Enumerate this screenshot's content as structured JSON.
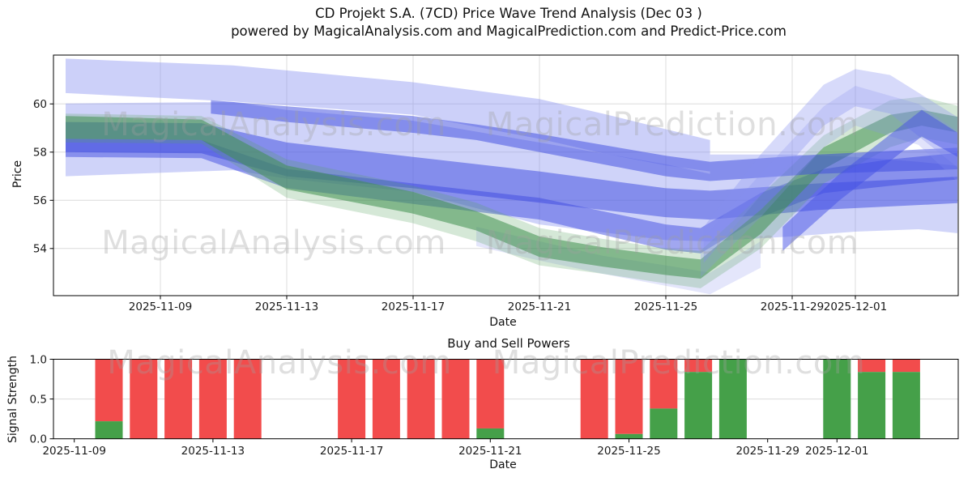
{
  "title": {
    "line1": "CD Projekt S.A. (7CD) Price Wave Trend Analysis (Dec 03 )",
    "line2": "powered by MagicalAnalysis.com and MagicalPrediction.com and Predict-Price.com"
  },
  "watermarks": {
    "left": "MagicalAnalysis.com",
    "right": "MagicalPrediction.com"
  },
  "colors": {
    "grid": "#dcdcdc",
    "spine": "#000000",
    "tick_text": "#1a1a1a",
    "buy_green": "#45a049",
    "sell_red": "#f24c4c",
    "royal_blue": "#3a47e0",
    "light_blue": "#8690f0",
    "band_green": "#3f8f4f"
  },
  "chart_data": [
    {
      "type": "area",
      "name": "price-wave-trend",
      "ylabel": "Price",
      "xlabel": "Date",
      "ylim": [
        52.1,
        61.95
      ],
      "grid": true,
      "yticks": [
        {
          "label": "60",
          "value": 60
        },
        {
          "label": "58",
          "value": 58
        },
        {
          "label": "56",
          "value": 56
        },
        {
          "label": "54",
          "value": 54
        }
      ],
      "xticks": [
        {
          "label": "2025-11-09",
          "day": 3
        },
        {
          "label": "2025-11-13",
          "day": 7
        },
        {
          "label": "2025-11-17",
          "day": 11
        },
        {
          "label": "2025-11-21",
          "day": 15
        },
        {
          "label": "2025-11-25",
          "day": 19
        },
        {
          "label": "2025-11-29",
          "day": 23
        },
        {
          "label": "2025-12-01",
          "day": 25
        }
      ],
      "day_zero_date": "2025-11-06",
      "bands": [
        {
          "name": "top-big-light",
          "color": "#8690f0",
          "opacity": 0.42,
          "points": [
            [
              0,
              60.45,
              61.88
            ],
            [
              5.3,
              60.1,
              61.6
            ],
            [
              11,
              59.55,
              60.9
            ],
            [
              15,
              58.55,
              60.2
            ],
            [
              17,
              57.95,
              59.6
            ],
            [
              19,
              57.45,
              58.95
            ],
            [
              20.4,
              57.2,
              58.5
            ]
          ]
        },
        {
          "name": "upper-second-light",
          "color": "#8690f0",
          "opacity": 0.4,
          "points": [
            [
              0,
              57.0,
              60.02
            ],
            [
              5.3,
              57.25,
              60.08
            ],
            [
              7,
              56.9,
              59.75
            ],
            [
              11,
              56.35,
              59.3
            ],
            [
              15,
              55.0,
              58.4
            ],
            [
              19,
              54.35,
              57.5
            ],
            [
              20.4,
              54.3,
              57.1
            ]
          ]
        },
        {
          "name": "mid-light-right",
          "color": "#8690f0",
          "opacity": 0.38,
          "points": [
            [
              20.4,
              54.3,
              57.9
            ],
            [
              23,
              54.5,
              57.9
            ],
            [
              25,
              54.7,
              57.8
            ],
            [
              27,
              54.8,
              57.6
            ],
            [
              28.5,
              54.6,
              57.4
            ]
          ]
        },
        {
          "name": "blue-tail",
          "color": "#6b77ea",
          "opacity": 0.18,
          "points": [
            [
              13,
              54.1,
              54.9
            ],
            [
              15,
              53.5,
              54.3
            ],
            [
              17,
              52.95,
              53.7
            ],
            [
              19,
              52.45,
              53.3
            ],
            [
              20.4,
              52.1,
              53.0
            ],
            [
              22,
              53.2,
              54.3
            ]
          ]
        },
        {
          "name": "royal-upper",
          "color": "#3a47e0",
          "opacity": 0.5,
          "points": [
            [
              0,
              58.0,
              59.25
            ],
            [
              4.3,
              57.95,
              59.2
            ],
            [
              7,
              57.0,
              58.4
            ],
            [
              11,
              56.5,
              57.8
            ],
            [
              15,
              55.9,
              57.2
            ],
            [
              19,
              55.3,
              56.5
            ],
            [
              20.4,
              55.2,
              56.4
            ],
            [
              23.8,
              55.6,
              56.7
            ],
            [
              28.5,
              55.9,
              57.0
            ]
          ]
        },
        {
          "name": "royal-lower",
          "color": "#3a47e0",
          "opacity": 0.48,
          "points": [
            [
              0,
              57.8,
              58.55
            ],
            [
              4.3,
              57.75,
              58.5
            ],
            [
              7,
              56.5,
              57.3
            ],
            [
              11,
              55.85,
              56.7
            ],
            [
              15,
              55.2,
              56.1
            ],
            [
              19,
              53.95,
              55.0
            ],
            [
              20.1,
              53.8,
              54.85
            ],
            [
              22,
              55.3,
              56.3
            ],
            [
              24,
              56.3,
              57.3
            ],
            [
              26.1,
              56.6,
              57.7
            ],
            [
              28.5,
              56.9,
              58.0
            ]
          ]
        },
        {
          "name": "green-halo",
          "color": "#58a55e",
          "opacity": 0.25,
          "points": [
            [
              0,
              58.4,
              59.6
            ],
            [
              4.3,
              58.35,
              59.5
            ],
            [
              7,
              56.1,
              57.7
            ],
            [
              11,
              55.05,
              56.6
            ],
            [
              13,
              54.3,
              55.9
            ],
            [
              15,
              53.3,
              54.85
            ],
            [
              17,
              52.95,
              54.4
            ],
            [
              19,
              52.55,
              54.0
            ],
            [
              20.1,
              52.35,
              53.9
            ],
            [
              22,
              54.0,
              56.2
            ],
            [
              24,
              56.7,
              58.7
            ],
            [
              26.1,
              58.2,
              60.15
            ],
            [
              27.1,
              58.6,
              60.3
            ],
            [
              28.3,
              58.3,
              59.9
            ]
          ]
        },
        {
          "name": "green-main",
          "color": "#3f8f4f",
          "opacity": 0.55,
          "points": [
            [
              0,
              58.55,
              59.5
            ],
            [
              4.3,
              58.5,
              59.35
            ],
            [
              7,
              56.45,
              57.45
            ],
            [
              11,
              55.45,
              56.35
            ],
            [
              13,
              54.75,
              55.55
            ],
            [
              15,
              53.65,
              54.5
            ],
            [
              17,
              53.25,
              54.05
            ],
            [
              19,
              52.9,
              53.7
            ],
            [
              20.1,
              52.75,
              53.55
            ],
            [
              22,
              54.6,
              55.6
            ],
            [
              24,
              57.3,
              58.2
            ],
            [
              26.1,
              58.8,
              59.55
            ],
            [
              27.1,
              59.1,
              59.75
            ],
            [
              28.3,
              58.8,
              59.45
            ]
          ]
        },
        {
          "name": "royal-top-stripe",
          "color": "#3a47e0",
          "opacity": 0.5,
          "points": [
            [
              4.6,
              59.6,
              60.15
            ],
            [
              7,
              59.25,
              59.9
            ],
            [
              11,
              58.8,
              59.5
            ],
            [
              13,
              58.5,
              59.15
            ],
            [
              15,
              58.0,
              58.75
            ],
            [
              17,
              57.5,
              58.3
            ],
            [
              19,
              57.0,
              57.85
            ],
            [
              20.4,
              56.8,
              57.6
            ],
            [
              23.8,
              57.1,
              57.9
            ],
            [
              28.5,
              57.3,
              58.2
            ]
          ]
        },
        {
          "name": "fan-light-outer",
          "color": "#8690f0",
          "opacity": 0.25,
          "points": [
            [
              20.1,
              52.8,
              54.3
            ],
            [
              22,
              55.3,
              57.1
            ],
            [
              24,
              58.2,
              59.9
            ],
            [
              25,
              59.1,
              60.75
            ],
            [
              27,
              58.3,
              60.0
            ],
            [
              28.3,
              56.7,
              58.8
            ]
          ]
        },
        {
          "name": "fan-light-inner",
          "color": "#8690f0",
          "opacity": 0.33,
          "points": [
            [
              20.2,
              53.4,
              54.9
            ],
            [
              22,
              56.2,
              57.9
            ],
            [
              24,
              59.1,
              60.8
            ],
            [
              25,
              59.9,
              61.45
            ],
            [
              26.1,
              59.6,
              61.2
            ],
            [
              28.3,
              57.3,
              59.4
            ]
          ]
        },
        {
          "name": "royal-steep-riser",
          "color": "#4350e6",
          "opacity": 0.5,
          "points": [
            [
              22.7,
              53.9,
              54.9
            ],
            [
              24.5,
              56.0,
              57.1
            ],
            [
              27.1,
              58.65,
              59.75
            ],
            [
              28.3,
              57.75,
              58.75
            ]
          ]
        }
      ]
    },
    {
      "type": "bar",
      "name": "buy-sell-powers",
      "title": "Buy and Sell Powers",
      "ylabel": "Signal Strength",
      "xlabel": "Date",
      "ylim": [
        0,
        1
      ],
      "grid": true,
      "yticks": [
        {
          "label": "1.0",
          "value": 1.0
        },
        {
          "label": "0.5",
          "value": 0.5
        },
        {
          "label": "0.0",
          "value": 0.0
        }
      ],
      "xticks": [
        {
          "label": "2025-11-09",
          "day": 3
        },
        {
          "label": "2025-11-13",
          "day": 7
        },
        {
          "label": "2025-11-17",
          "day": 11
        },
        {
          "label": "2025-11-21",
          "day": 15
        },
        {
          "label": "2025-11-25",
          "day": 19
        },
        {
          "label": "2025-11-29",
          "day": 23
        },
        {
          "label": "2025-12-01",
          "day": 25
        }
      ],
      "day_zero_date": "2025-11-06",
      "series": [
        {
          "name": "buy",
          "color": "#45a049"
        },
        {
          "name": "sell",
          "color": "#f24c4c"
        }
      ],
      "bars": [
        {
          "date": "2025-11-10",
          "buy": 0.22,
          "sell": 0.78
        },
        {
          "date": "2025-11-11",
          "buy": 0.0,
          "sell": 1.0
        },
        {
          "date": "2025-11-12",
          "buy": 0.0,
          "sell": 1.0
        },
        {
          "date": "2025-11-13",
          "buy": 0.0,
          "sell": 1.0
        },
        {
          "date": "2025-11-14",
          "buy": 0.0,
          "sell": 1.0
        },
        {
          "date": "2025-11-17",
          "buy": 0.0,
          "sell": 1.0
        },
        {
          "date": "2025-11-18",
          "buy": 0.0,
          "sell": 1.0
        },
        {
          "date": "2025-11-19",
          "buy": 0.0,
          "sell": 1.0
        },
        {
          "date": "2025-11-20",
          "buy": 0.0,
          "sell": 1.0
        },
        {
          "date": "2025-11-21",
          "buy": 0.13,
          "sell": 0.87
        },
        {
          "date": "2025-11-24",
          "buy": 0.0,
          "sell": 1.0
        },
        {
          "date": "2025-11-25",
          "buy": 0.06,
          "sell": 0.94
        },
        {
          "date": "2025-11-26",
          "buy": 0.38,
          "sell": 0.62
        },
        {
          "date": "2025-11-27",
          "buy": 0.84,
          "sell": 0.16
        },
        {
          "date": "2025-11-28",
          "buy": 1.0,
          "sell": 0.0
        },
        {
          "date": "2025-12-01",
          "buy": 1.0,
          "sell": 0.0
        },
        {
          "date": "2025-12-02",
          "buy": 0.84,
          "sell": 0.16
        },
        {
          "date": "2025-12-03",
          "buy": 0.84,
          "sell": 0.16
        }
      ]
    }
  ]
}
